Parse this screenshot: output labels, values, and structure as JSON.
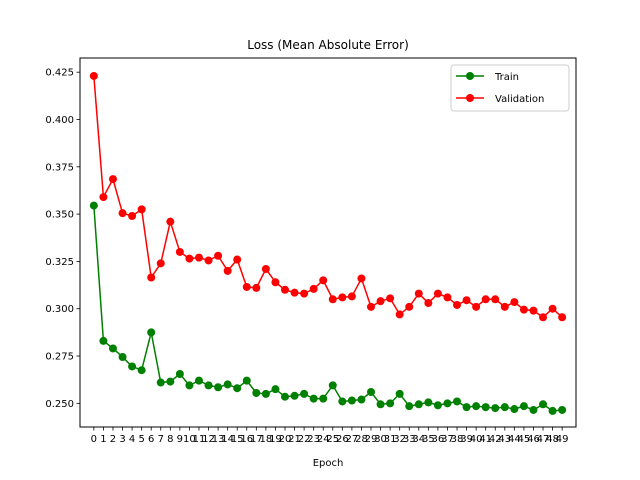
{
  "chart_data": {
    "type": "line",
    "title": "Loss (Mean Absolute Error)",
    "xlabel": "Epoch",
    "ylabel": "",
    "x": [
      0,
      1,
      2,
      3,
      4,
      5,
      6,
      7,
      8,
      9,
      10,
      11,
      12,
      13,
      14,
      15,
      16,
      17,
      18,
      19,
      20,
      21,
      22,
      23,
      24,
      25,
      26,
      27,
      28,
      29,
      30,
      31,
      32,
      33,
      34,
      35,
      36,
      37,
      38,
      39,
      40,
      41,
      42,
      43,
      44,
      45,
      46,
      47,
      48,
      49
    ],
    "xlim": [
      -1.45,
      50.45
    ],
    "ylim": [
      0.2375,
      0.4325
    ],
    "yticks": [
      0.25,
      0.275,
      0.3,
      0.325,
      0.35,
      0.375,
      0.4,
      0.425
    ],
    "ytick_labels": [
      "0.250",
      "0.275",
      "0.300",
      "0.325",
      "0.350",
      "0.375",
      "0.400",
      "0.425"
    ],
    "grid": false,
    "legend_position": "top-right",
    "series": [
      {
        "name": "Train",
        "color": "#008000",
        "marker": "circle",
        "values": [
          0.3545,
          0.283,
          0.279,
          0.2745,
          0.2695,
          0.2675,
          0.2875,
          0.261,
          0.2615,
          0.2655,
          0.2595,
          0.262,
          0.2595,
          0.2585,
          0.26,
          0.258,
          0.262,
          0.2555,
          0.255,
          0.2575,
          0.2535,
          0.254,
          0.255,
          0.2525,
          0.2525,
          0.2595,
          0.251,
          0.2515,
          0.252,
          0.256,
          0.2495,
          0.25,
          0.255,
          0.2485,
          0.2495,
          0.2505,
          0.249,
          0.25,
          0.251,
          0.248,
          0.2485,
          0.248,
          0.2475,
          0.248,
          0.247,
          0.2485,
          0.2465,
          0.2495,
          0.246,
          0.2465
        ]
      },
      {
        "name": "Validation",
        "color": "#ff0000",
        "marker": "circle",
        "values": [
          0.423,
          0.359,
          0.3685,
          0.3505,
          0.349,
          0.3525,
          0.3165,
          0.324,
          0.346,
          0.33,
          0.3265,
          0.327,
          0.3255,
          0.328,
          0.32,
          0.326,
          0.3115,
          0.311,
          0.321,
          0.314,
          0.31,
          0.3085,
          0.308,
          0.3105,
          0.315,
          0.305,
          0.306,
          0.3065,
          0.316,
          0.301,
          0.304,
          0.3055,
          0.297,
          0.301,
          0.308,
          0.303,
          0.308,
          0.306,
          0.302,
          0.3045,
          0.301,
          0.305,
          0.305,
          0.301,
          0.3035,
          0.2995,
          0.299,
          0.2955,
          0.3,
          0.2955
        ]
      }
    ]
  }
}
